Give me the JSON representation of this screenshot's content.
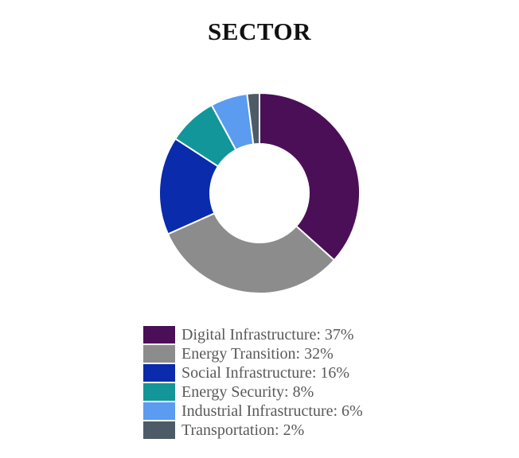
{
  "chart_data": {
    "type": "pie",
    "variant": "donut",
    "title": "SECTOR",
    "legend_placement": "bottom",
    "slices": [
      {
        "label": "Digital Infrastructure: 37%",
        "name": "Digital Infrastructure",
        "value": 37,
        "color": "#4b0f57"
      },
      {
        "label": "Energy Transition: 32%",
        "name": "Energy Transition",
        "value": 32,
        "color": "#8c8c8c"
      },
      {
        "label": "Social Infrastructure: 16%",
        "name": "Social Infrastructure",
        "value": 16,
        "color": "#0a2bab"
      },
      {
        "label": "Energy Security: 8%",
        "name": "Energy Security",
        "value": 8,
        "color": "#12969a"
      },
      {
        "label": "Industrial Infrastructure: 6%",
        "name": "Industrial Infrastructure",
        "value": 6,
        "color": "#5b9bf0"
      },
      {
        "label": "Transportation: 2%",
        "name": "Transportation",
        "value": 2,
        "color": "#4d5b66"
      }
    ]
  }
}
